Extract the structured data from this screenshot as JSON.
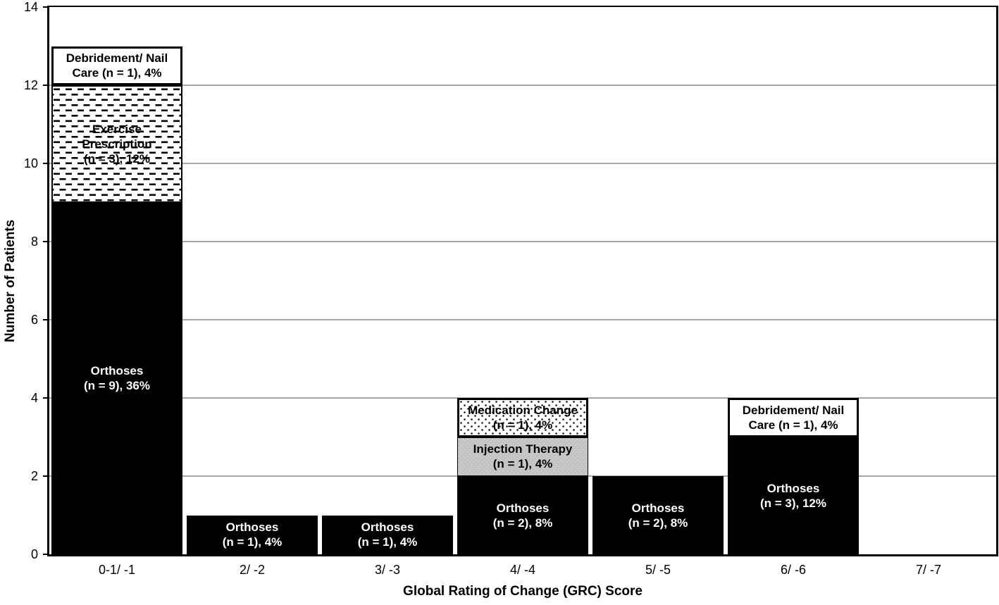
{
  "chart_data": {
    "type": "bar",
    "stacked": true,
    "title": "",
    "xlabel": "Global Rating of Change (GRC) Score",
    "ylabel": "Number of Patients",
    "ylim": [
      0,
      14
    ],
    "yticks": [
      0,
      2,
      4,
      6,
      8,
      10,
      12,
      14
    ],
    "grid": "horizontal gridlines at each y tick",
    "legend_position": "none (segments labeled inside bars)",
    "categories": [
      "0-1/ -1",
      "2/ -2",
      "3/ -3",
      "4/ -4",
      "5/ -5",
      "6/ -6",
      "7/ -7"
    ],
    "series": [
      {
        "name": "Orthoses",
        "style": "solid-black",
        "values": [
          9,
          1,
          1,
          2,
          2,
          3,
          0
        ]
      },
      {
        "name": "Injection Therapy",
        "style": "gray-fill",
        "values": [
          0,
          0,
          0,
          1,
          0,
          0,
          0
        ]
      },
      {
        "name": "Exercise Prescription",
        "style": "dashed-pattern",
        "values": [
          3,
          0,
          0,
          0,
          0,
          0,
          0
        ]
      },
      {
        "name": "Medication Change",
        "style": "dotted-pattern",
        "values": [
          0,
          0,
          0,
          1,
          0,
          0,
          0
        ]
      },
      {
        "name": "Debridement/ Nail Care",
        "style": "white-fill",
        "values": [
          1,
          0,
          0,
          0,
          0,
          1,
          0
        ]
      }
    ],
    "bars": [
      {
        "category": "0-1/ -1",
        "segments": [
          {
            "series": "Orthoses",
            "from": 0,
            "to": 9,
            "fill": "black",
            "label": "Orthoses\n(n = 9), 36%"
          },
          {
            "series": "Exercise Prescription",
            "from": 9,
            "to": 12,
            "fill": "dashed",
            "label": "Exercise\nPrescription\n(n = 3), 12%"
          },
          {
            "series": "Debridement/ Nail Care",
            "from": 12,
            "to": 13,
            "fill": "white",
            "label": "Debridement/ Nail\nCare (n = 1), 4%"
          }
        ]
      },
      {
        "category": "2/ -2",
        "segments": [
          {
            "series": "Orthoses",
            "from": 0,
            "to": 1,
            "fill": "black",
            "label": "Orthoses\n(n = 1), 4%"
          }
        ]
      },
      {
        "category": "3/ -3",
        "segments": [
          {
            "series": "Orthoses",
            "from": 0,
            "to": 1,
            "fill": "black",
            "label": "Orthoses\n(n = 1), 4%"
          }
        ]
      },
      {
        "category": "4/ -4",
        "segments": [
          {
            "series": "Orthoses",
            "from": 0,
            "to": 2,
            "fill": "black",
            "label": "Orthoses\n(n = 2), 8%"
          },
          {
            "series": "Injection Therapy",
            "from": 2,
            "to": 3,
            "fill": "gray",
            "label": "Injection Therapy\n(n = 1), 4%"
          },
          {
            "series": "Medication Change",
            "from": 3,
            "to": 4,
            "fill": "dotted",
            "label": "Medication Change\n(n = 1), 4%"
          }
        ]
      },
      {
        "category": "5/ -5",
        "segments": [
          {
            "series": "Orthoses",
            "from": 0,
            "to": 2,
            "fill": "black",
            "label": "Orthoses\n(n = 2), 8%"
          }
        ]
      },
      {
        "category": "6/ -6",
        "segments": [
          {
            "series": "Orthoses",
            "from": 0,
            "to": 3,
            "fill": "black",
            "label": "Orthoses\n(n = 3), 12%"
          },
          {
            "series": "Debridement/ Nail Care",
            "from": 3,
            "to": 4,
            "fill": "white",
            "label": "Debridement/ Nail\nCare (n = 1), 4%"
          }
        ]
      },
      {
        "category": "7/ -7",
        "segments": []
      }
    ],
    "colors": {
      "bar_black": "#000000",
      "bar_gray": "#c3c3c3",
      "bar_white": "#ffffff",
      "pattern_ink": "#000000",
      "gridline": "#a6a6a6",
      "axis": "#000000",
      "label_on_black": "#ffffff",
      "label_on_light": "#000000"
    }
  }
}
